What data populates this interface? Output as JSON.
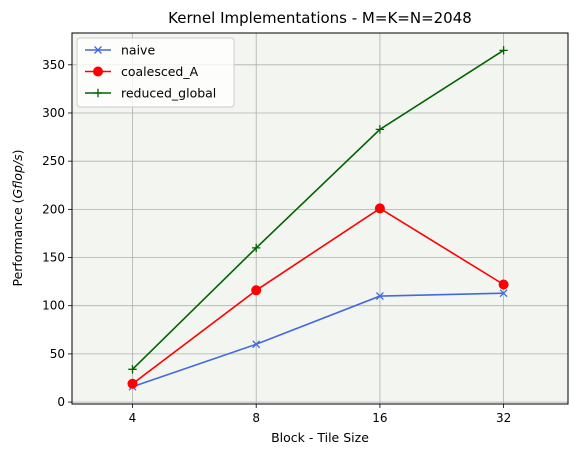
{
  "chart_data": {
    "type": "line",
    "title": "Kernel Implementations - M=K=N=2048",
    "xlabel": "Block - Tile Size",
    "ylabel_prefix": "Performance (",
    "ylabel_italic": "Gflop/s",
    "ylabel_suffix": ")",
    "categories": [
      "4",
      "8",
      "16",
      "32"
    ],
    "ylim": [
      -2,
      383
    ],
    "yticks": [
      0,
      50,
      100,
      150,
      200,
      250,
      300,
      350
    ],
    "grid": true,
    "legend_position": "top-left",
    "plot_background": "#f3f5f0",
    "series": [
      {
        "name": "naive",
        "color": "#4169e1",
        "marker": "x",
        "values": [
          16,
          60,
          110,
          113
        ]
      },
      {
        "name": "coalesced_A",
        "color": "#ff0000",
        "marker": "o",
        "values": [
          19,
          116,
          201,
          122
        ]
      },
      {
        "name": "reduced_global",
        "color": "#006400",
        "marker": "+",
        "values": [
          34,
          160,
          283,
          365
        ]
      }
    ]
  }
}
